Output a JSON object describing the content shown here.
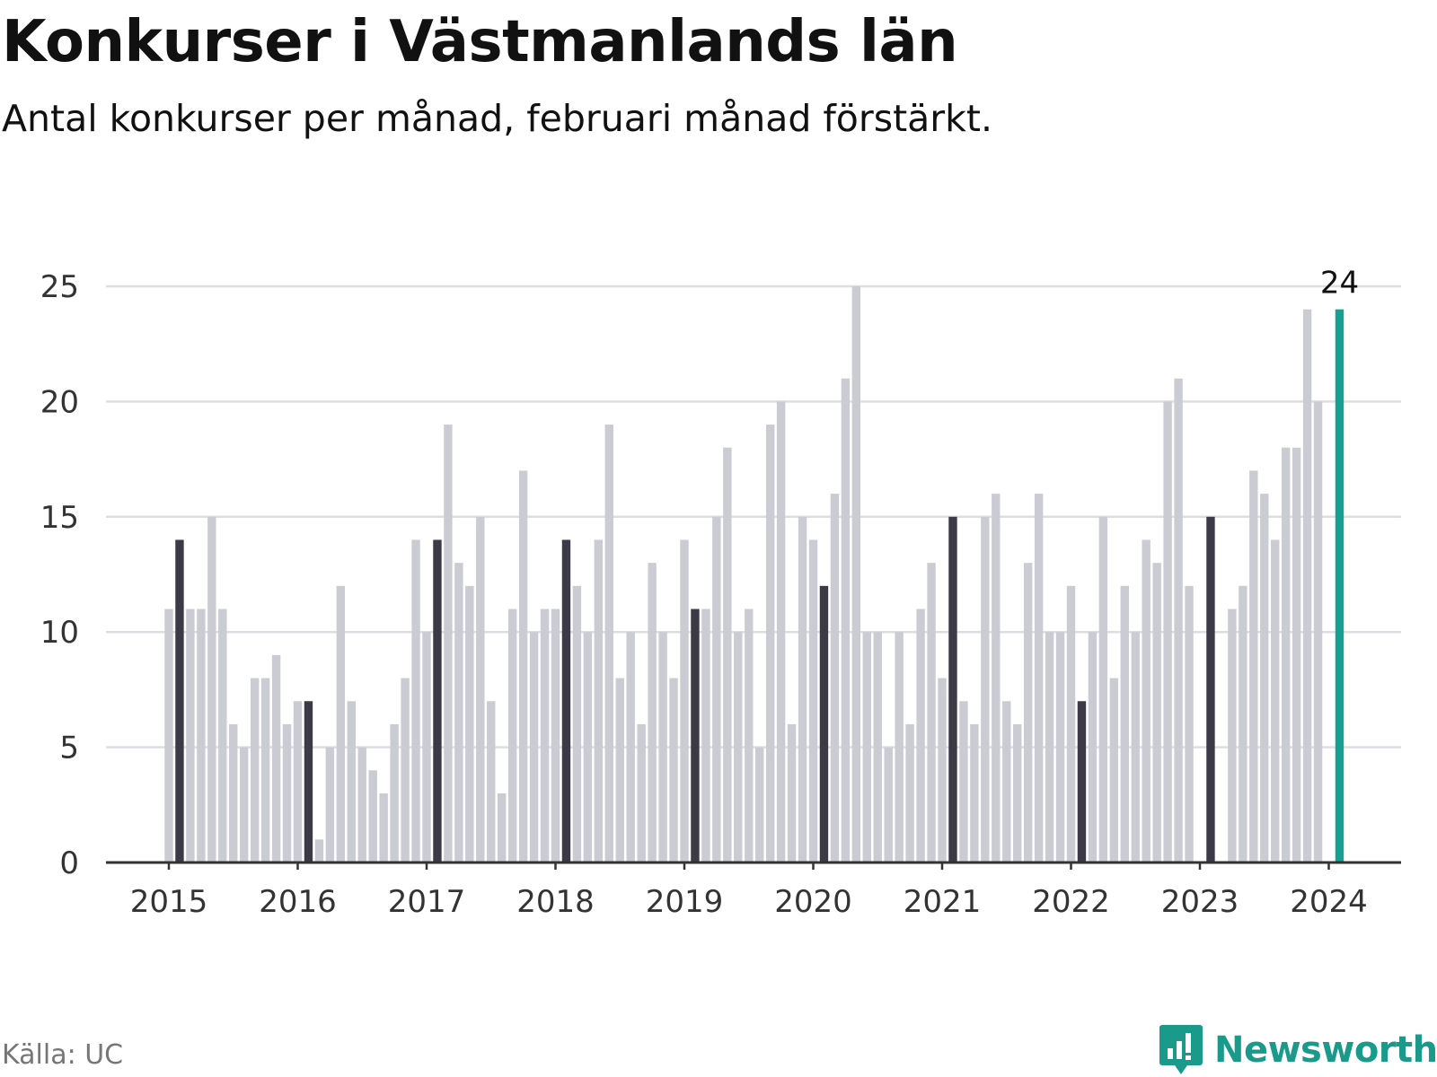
{
  "title": "Konkurser i Västmanlands län",
  "subtitle": "Antal konkurser per månad, februari månad förstärkt.",
  "source": "Källa: UC",
  "brand": "Newsworthy",
  "colors": {
    "bar": "#cbcbd3",
    "february": "#3c3a46",
    "latest": "#17a091",
    "grid": "#dddde2",
    "axis": "#333333",
    "brand": "#1a9a8a"
  },
  "chart_data": {
    "type": "bar",
    "title": "Konkurser i Västmanlands län",
    "ylim": [
      0,
      25
    ],
    "yticks": [
      "0",
      "5",
      "10",
      "15",
      "20",
      "25"
    ],
    "xticks": [
      "2015",
      "2016",
      "2017",
      "2018",
      "2019",
      "2020",
      "2021",
      "2022",
      "2023",
      "2024"
    ],
    "start_month": "2015-01",
    "highlight": "february",
    "latest_label": "24",
    "values": [
      11,
      14,
      11,
      11,
      15,
      11,
      6,
      5,
      8,
      8,
      9,
      6,
      7,
      7,
      1,
      5,
      12,
      7,
      5,
      4,
      3,
      6,
      8,
      14,
      10,
      14,
      19,
      13,
      12,
      15,
      7,
      3,
      11,
      17,
      10,
      11,
      11,
      14,
      12,
      10,
      14,
      19,
      8,
      10,
      6,
      13,
      10,
      8,
      14,
      11,
      11,
      15,
      18,
      10,
      11,
      5,
      19,
      20,
      6,
      15,
      14,
      12,
      16,
      21,
      25,
      10,
      10,
      5,
      10,
      6,
      11,
      13,
      8,
      15,
      7,
      6,
      15,
      16,
      7,
      6,
      13,
      16,
      10,
      10,
      12,
      7,
      10,
      15,
      8,
      12,
      10,
      14,
      13,
      20,
      21,
      12,
      0,
      15,
      0,
      11,
      12,
      17,
      16,
      14,
      18,
      18,
      24,
      20,
      0,
      24
    ]
  }
}
